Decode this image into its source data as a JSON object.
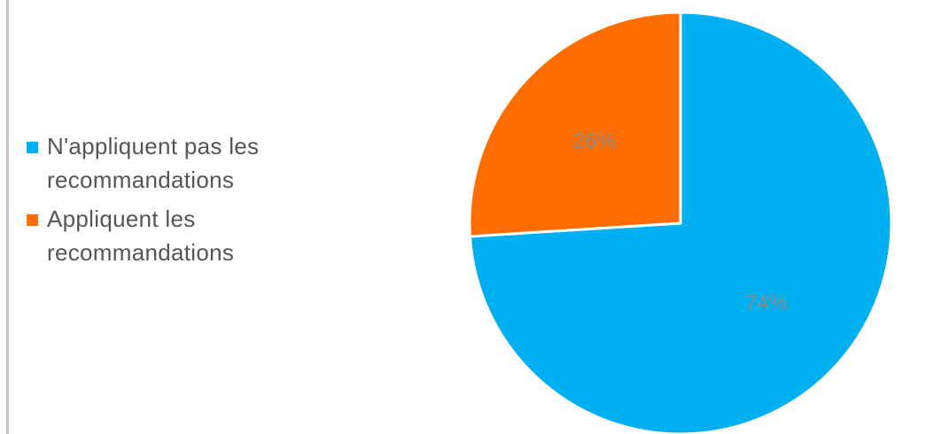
{
  "chart_data": {
    "type": "pie",
    "slices": [
      {
        "label": "N'appliquent pas les recommandations",
        "value": 74,
        "display": "74%",
        "color": "#00b0f0"
      },
      {
        "label": "Appliquent les recommandations",
        "value": 26,
        "display": "26%",
        "color": "#ff6d00"
      }
    ],
    "start_angle_deg": 0,
    "direction": "clockwise",
    "legend_position": "left"
  }
}
